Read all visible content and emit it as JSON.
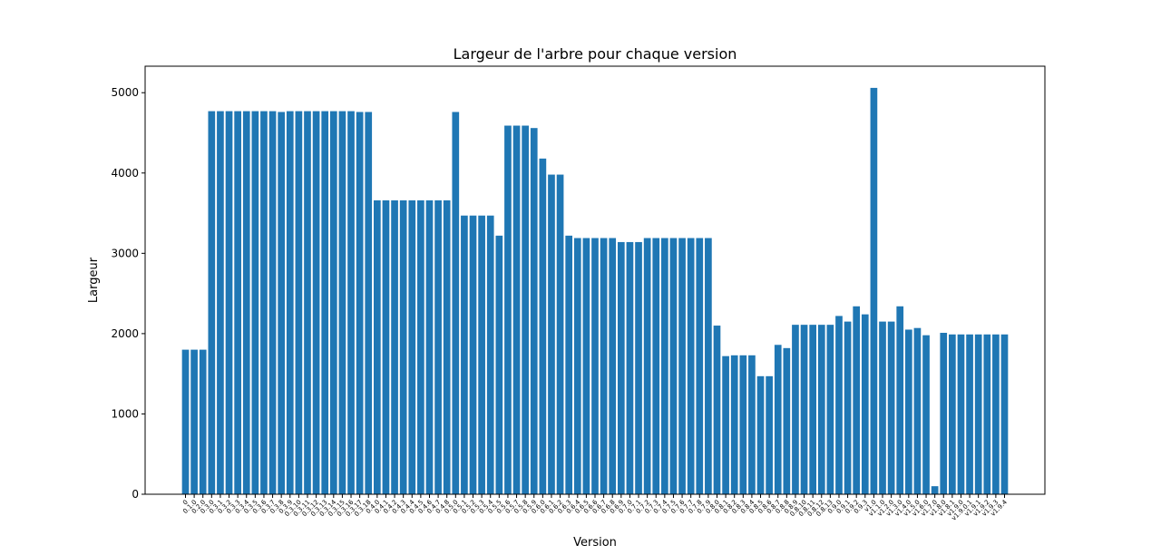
{
  "chart_data": {
    "type": "bar",
    "title": "Largeur de l'arbre pour chaque version",
    "x_label": "Version",
    "y_label": "Largeur",
    "color": "#1f77b4",
    "categories": [
      "0",
      "0.1.0",
      "0.2.0",
      "0.3.0",
      "0.3.1",
      "0.3.2",
      "0.3.3",
      "0.3.4",
      "0.3.5",
      "0.3.6",
      "0.3.7",
      "0.3.8",
      "0.3.9",
      "0.3.10",
      "0.3.11",
      "0.3.12",
      "0.3.13",
      "0.3.14",
      "0.3.15",
      "0.3.16",
      "0.3.17",
      "0.3.18",
      "0.4.0",
      "0.4.1",
      "0.4.2",
      "0.4.3",
      "0.4.4",
      "0.4.5",
      "0.4.6",
      "0.4.7",
      "0.4.8",
      "0.5.0",
      "0.5.1",
      "0.5.2",
      "0.5.3",
      "0.5.4",
      "0.5.5",
      "0.5.6",
      "0.5.7",
      "0.5.8",
      "0.5.9",
      "0.6.0",
      "0.6.1",
      "0.6.2",
      "0.6.3",
      "0.6.4",
      "0.6.5",
      "0.6.6",
      "0.6.7",
      "0.6.8",
      "0.6.9",
      "0.7.0",
      "0.7.1",
      "0.7.2",
      "0.7.3",
      "0.7.4",
      "0.7.5",
      "0.7.6",
      "0.7.7",
      "0.7.8",
      "0.7.9",
      "0.8.0",
      "0.8.1",
      "0.8.2",
      "0.8.3",
      "0.8.4",
      "0.8.5",
      "0.8.6",
      "0.8.7",
      "0.8.8",
      "0.8.9",
      "0.8.10",
      "0.8.11",
      "0.8.12",
      "0.8.13",
      "0.9.0",
      "0.9.1",
      "0.9.2",
      "0.9.3",
      "v1.0",
      "v1.1.0",
      "v1.2.0",
      "v1.3.0",
      "v1.4.0",
      "v1.5.0",
      "v1.6.0",
      "v1.7.0",
      "v1.8.0",
      "v1.8.1",
      "v1.9.0",
      "v1.9.0.1",
      "v1.9.1",
      "v1.9.2",
      "v1.9.3",
      "v1.9.4"
    ],
    "values": [
      1800,
      1800,
      1800,
      4770,
      4770,
      4770,
      4770,
      4770,
      4770,
      4770,
      4770,
      4760,
      4770,
      4770,
      4770,
      4770,
      4770,
      4770,
      4770,
      4770,
      4760,
      4760,
      3660,
      3660,
      3660,
      3660,
      3660,
      3660,
      3660,
      3660,
      3660,
      4760,
      3470,
      3470,
      3470,
      3470,
      3220,
      4590,
      4590,
      4590,
      4560,
      4180,
      3980,
      3980,
      3220,
      3190,
      3190,
      3190,
      3190,
      3190,
      3140,
      3140,
      3140,
      3190,
      3190,
      3190,
      3190,
      3190,
      3190,
      3190,
      3190,
      2100,
      1720,
      1730,
      1730,
      1730,
      1470,
      1470,
      1860,
      1820,
      2110,
      2110,
      2110,
      2110,
      2110,
      2220,
      2150,
      2340,
      2240,
      5060,
      2150,
      2150,
      2340,
      2050,
      2070,
      1980,
      100,
      2010,
      1990,
      1990,
      1990,
      1990,
      1990,
      1990,
      1990
    ],
    "ylim": [
      0,
      5330
    ],
    "yticks": [
      0,
      1000,
      2000,
      3000,
      4000,
      5000
    ]
  }
}
